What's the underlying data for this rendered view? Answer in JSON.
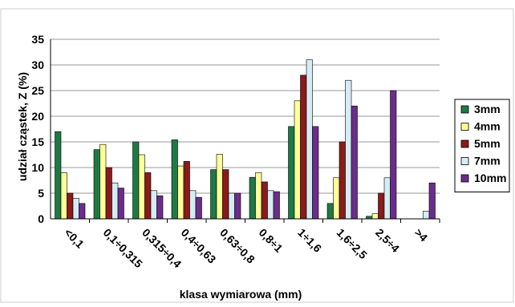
{
  "chart_data": {
    "type": "bar",
    "title": "",
    "xlabel": "klasa wymiarowa (mm)",
    "ylabel": "udział cząstek, Z (%)",
    "ylim": [
      0,
      35
    ],
    "yticks": [
      0,
      5,
      10,
      15,
      20,
      25,
      30,
      35
    ],
    "grid": true,
    "legend_position": "right",
    "categories": [
      "<0,1",
      "0,1÷0,315",
      "0,315÷0,4",
      "0,4÷0,63",
      "0,63÷0,8",
      "0,8÷1",
      "1÷1,6",
      "1,6÷2,5",
      "2,5÷4",
      ">4"
    ],
    "series": [
      {
        "name": "3mm",
        "color": "#1e7a45",
        "values": [
          17,
          13.5,
          15,
          15.4,
          9.6,
          8.1,
          18,
          3,
          0.5,
          0
        ]
      },
      {
        "name": "4mm",
        "color": "#ffff99",
        "values": [
          9,
          14.5,
          12.5,
          10.3,
          12.6,
          9,
          23,
          8,
          1,
          0
        ]
      },
      {
        "name": "5mm",
        "color": "#8b1a1a",
        "values": [
          5,
          10,
          9,
          11.2,
          9.6,
          7.2,
          28,
          15,
          5,
          0
        ]
      },
      {
        "name": "7mm",
        "color": "#d6ecf5",
        "values": [
          4,
          7,
          5.5,
          5.5,
          5,
          5.5,
          31,
          27,
          8,
          1.5
        ]
      },
      {
        "name": "10mm",
        "color": "#6b2d8c",
        "values": [
          3,
          6,
          4.5,
          4.2,
          5,
          5.3,
          18,
          22,
          25,
          7
        ]
      }
    ]
  }
}
